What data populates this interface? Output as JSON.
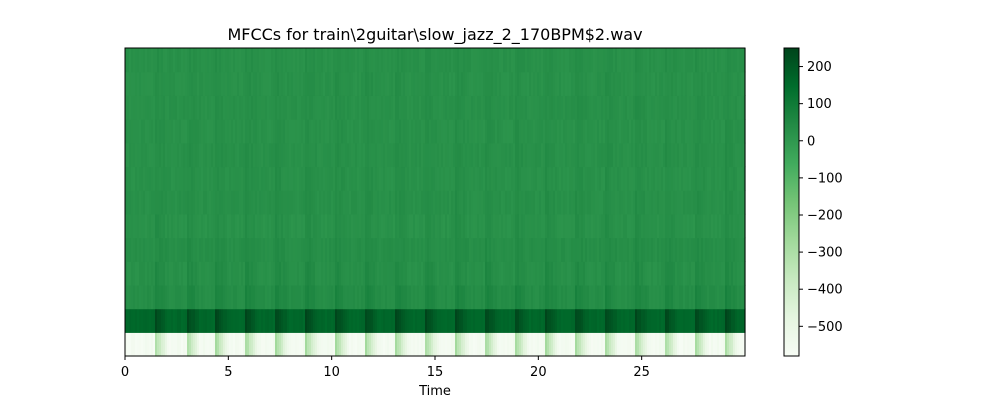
{
  "chart_data": {
    "type": "heatmap",
    "title": "MFCCs for train\\2guitar\\slow_jazz_2_170BPM$2.wav",
    "xlabel": "Time",
    "ylabel": "",
    "xlim": [
      0,
      30
    ],
    "x_ticks": [
      0,
      5,
      10,
      15,
      20,
      25
    ],
    "x_tick_labels": [
      "0",
      "5",
      "10",
      "15",
      "20",
      "25"
    ],
    "y_ticks_shown": false,
    "n_coefficients": 13,
    "colormap": "Greens",
    "colorbar": {
      "vmin": -580,
      "vmax": 250,
      "ticks": [
        200,
        100,
        0,
        -100,
        -200,
        -300,
        -400,
        -500
      ],
      "tick_labels": [
        "200",
        "100",
        "0",
        "−100",
        "−200",
        "−300",
        "−400",
        "−500"
      ],
      "position": "right"
    },
    "coefficient_bands": [
      {
        "index": 0,
        "typical": -560,
        "onset_value": -280,
        "note": "energy coefficient, pale with green bursts at onsets"
      },
      {
        "index": 1,
        "typical": 160,
        "onset_value": 245,
        "note": "dark green, darkest at onsets"
      },
      {
        "index": 2,
        "typical": 35,
        "onset_value": 70
      },
      {
        "index": 3,
        "typical": 25,
        "onset_value": 55
      },
      {
        "index": 4,
        "typical": 30,
        "onset_value": 45
      },
      {
        "index": 5,
        "typical": 20,
        "onset_value": 40
      },
      {
        "index": 6,
        "typical": 25,
        "onset_value": 40
      },
      {
        "index": 7,
        "typical": 22,
        "onset_value": 38
      },
      {
        "index": 8,
        "typical": 24,
        "onset_value": 38
      },
      {
        "index": 9,
        "typical": 22,
        "onset_value": 36
      },
      {
        "index": 10,
        "typical": 24,
        "onset_value": 36
      },
      {
        "index": 11,
        "typical": 22,
        "onset_value": 35
      },
      {
        "index": 12,
        "typical": 24,
        "onset_value": 35
      }
    ],
    "note_onsets_seconds": [
      1.45,
      3.0,
      4.4,
      5.85,
      7.3,
      8.75,
      10.2,
      11.65,
      13.1,
      14.55,
      16.0,
      17.45,
      18.9,
      20.35,
      21.8,
      23.25,
      24.7,
      26.15,
      27.6,
      29.05
    ]
  },
  "colors": {
    "cmap_stops": [
      "#f7fcf5",
      "#e5f5e0",
      "#c7e9c0",
      "#a1d99b",
      "#74c476",
      "#41ab5d",
      "#238b45",
      "#006d2c",
      "#00441b"
    ]
  }
}
